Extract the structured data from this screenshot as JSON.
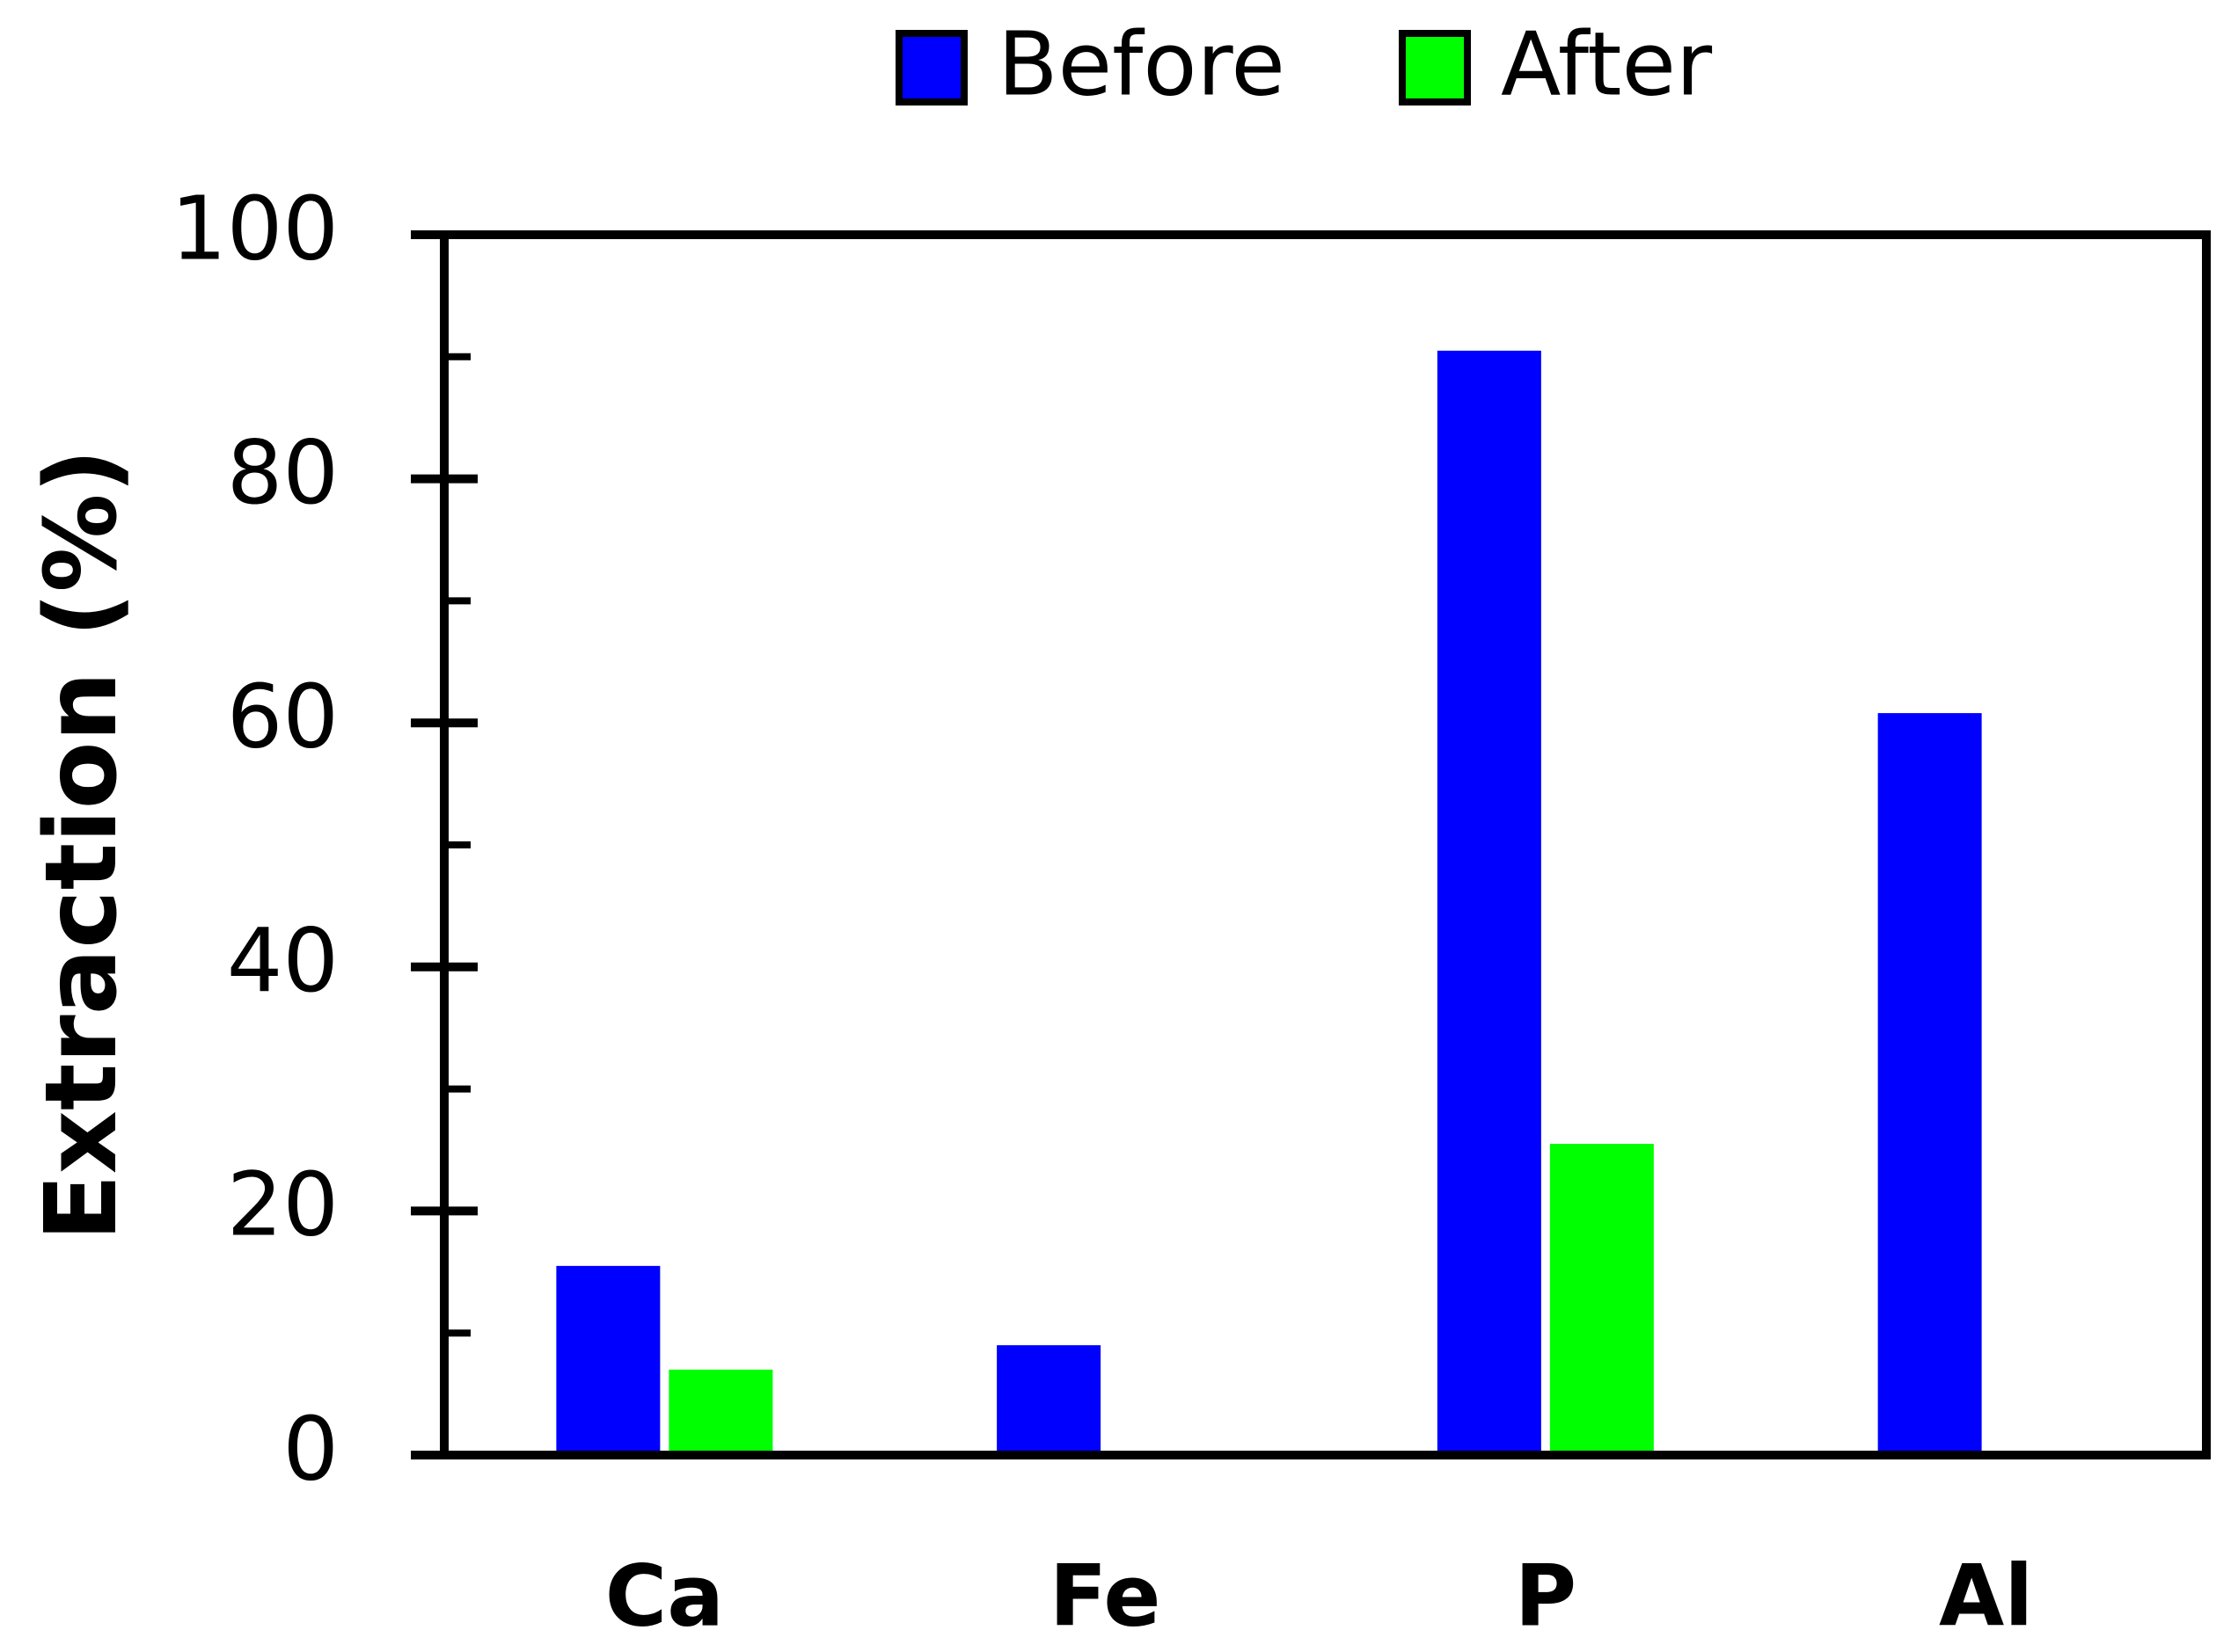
{
  "chart_data": {
    "type": "bar",
    "y_label": "Extraction (%)",
    "categories": [
      "Ca",
      "Fe",
      "P",
      "Al"
    ],
    "series": [
      {
        "name": "Before",
        "color": "#0000ff",
        "values": [
          15.5,
          9,
          90.5,
          60.8
        ]
      },
      {
        "name": "After",
        "color": "#00ff00",
        "values": [
          7,
          0.3,
          25.5,
          0.2
        ]
      }
    ],
    "ylim": [
      0,
      100
    ],
    "yticks": [
      0,
      20,
      40,
      60,
      80,
      100
    ],
    "yminorticks": [
      10,
      30,
      50,
      70,
      90
    ],
    "grid": false,
    "legend": "top"
  }
}
